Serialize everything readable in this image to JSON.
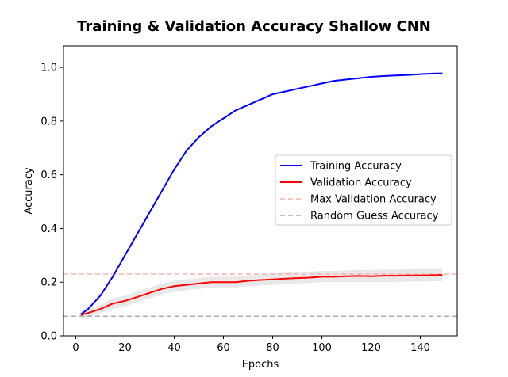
{
  "chart_data": {
    "type": "line",
    "title": "Training & Validation Accuracy Shallow CNN",
    "xlabel": "Epochs",
    "ylabel": "Accuracy",
    "xlim": [
      -5,
      155
    ],
    "ylim": [
      0,
      1.08
    ],
    "xticks": [
      0,
      20,
      40,
      60,
      80,
      100,
      120,
      140
    ],
    "yticks": [
      0.0,
      0.2,
      0.4,
      0.6,
      0.8,
      1.0
    ],
    "ytick_labels": [
      "0.0",
      "0.2",
      "0.4",
      "0.6",
      "0.8",
      "1.0"
    ],
    "grid": false,
    "legend_position": "center-right",
    "x": [
      2,
      5,
      10,
      15,
      20,
      25,
      30,
      35,
      40,
      45,
      50,
      55,
      60,
      65,
      70,
      75,
      80,
      85,
      90,
      95,
      100,
      105,
      110,
      115,
      120,
      125,
      130,
      135,
      140,
      145,
      149
    ],
    "series": [
      {
        "name": "Training Accuracy",
        "color": "#0000ff",
        "style": "solid",
        "values": [
          0.08,
          0.1,
          0.15,
          0.22,
          0.3,
          0.38,
          0.46,
          0.54,
          0.62,
          0.69,
          0.74,
          0.78,
          0.81,
          0.84,
          0.86,
          0.88,
          0.9,
          0.91,
          0.92,
          0.93,
          0.94,
          0.95,
          0.955,
          0.96,
          0.965,
          0.968,
          0.97,
          0.972,
          0.975,
          0.977,
          0.978
        ]
      },
      {
        "name": "Validation Accuracy",
        "color": "#ff0000",
        "style": "solid",
        "values": [
          0.078,
          0.085,
          0.1,
          0.12,
          0.13,
          0.145,
          0.16,
          0.175,
          0.185,
          0.19,
          0.195,
          0.2,
          0.2,
          0.2,
          0.205,
          0.208,
          0.21,
          0.213,
          0.215,
          0.217,
          0.22,
          0.22,
          0.222,
          0.223,
          0.222,
          0.224,
          0.224,
          0.225,
          0.225,
          0.226,
          0.227
        ],
        "band_lower": [
          0.065,
          0.07,
          0.085,
          0.1,
          0.11,
          0.125,
          0.14,
          0.155,
          0.165,
          0.17,
          0.175,
          0.18,
          0.18,
          0.18,
          0.185,
          0.188,
          0.19,
          0.193,
          0.195,
          0.197,
          0.2,
          0.2,
          0.2,
          0.2,
          0.2,
          0.2,
          0.2,
          0.202,
          0.202,
          0.203,
          0.204
        ],
        "band_upper": [
          0.09,
          0.1,
          0.115,
          0.14,
          0.15,
          0.165,
          0.18,
          0.195,
          0.205,
          0.21,
          0.215,
          0.22,
          0.22,
          0.22,
          0.225,
          0.228,
          0.232,
          0.236,
          0.238,
          0.24,
          0.242,
          0.242,
          0.244,
          0.246,
          0.245,
          0.247,
          0.247,
          0.248,
          0.248,
          0.249,
          0.25
        ]
      },
      {
        "name": "Max Validation Accuracy",
        "color": "#ffb0b0",
        "style": "dashed",
        "value": 0.23
      },
      {
        "name": "Random Guess Accuracy",
        "color": "#aaaaaa",
        "style": "dashed",
        "value": 0.073
      }
    ]
  }
}
